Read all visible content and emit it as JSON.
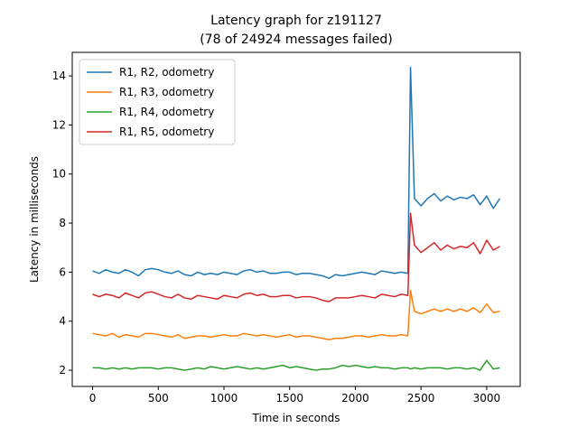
{
  "chart_data": {
    "type": "line",
    "title": "Latency graph for z191127",
    "subtitle": "(78 of 24924 messages failed)",
    "xlabel": "Time in seconds",
    "ylabel": "Latency in milliseconds",
    "xlim": [
      -155,
      3255
    ],
    "ylim": [
      1.34,
      14.96
    ],
    "xticks": [
      0,
      500,
      1000,
      1500,
      2000,
      2500,
      3000
    ],
    "yticks": [
      2,
      4,
      6,
      8,
      10,
      12,
      14
    ],
    "grid": false,
    "legend": "upper left",
    "x": [
      0,
      50,
      100,
      150,
      200,
      250,
      300,
      350,
      400,
      450,
      500,
      550,
      600,
      650,
      700,
      750,
      800,
      850,
      900,
      950,
      1000,
      1050,
      1100,
      1150,
      1200,
      1250,
      1300,
      1350,
      1400,
      1450,
      1500,
      1550,
      1600,
      1650,
      1700,
      1750,
      1800,
      1850,
      1900,
      1950,
      2000,
      2050,
      2100,
      2150,
      2200,
      2250,
      2300,
      2350,
      2400,
      2420,
      2450,
      2500,
      2550,
      2600,
      2650,
      2700,
      2750,
      2800,
      2850,
      2900,
      2950,
      3000,
      3050,
      3100
    ],
    "series": [
      {
        "name": "R1, R2, odometry",
        "color": "#1f77b4",
        "values": [
          6.05,
          5.95,
          6.1,
          6.0,
          5.95,
          6.1,
          6.0,
          5.85,
          6.1,
          6.15,
          6.1,
          6.0,
          5.95,
          6.05,
          5.9,
          5.85,
          6.0,
          5.9,
          5.95,
          5.9,
          6.0,
          5.95,
          5.9,
          6.05,
          6.1,
          6.0,
          6.05,
          5.95,
          5.95,
          6.0,
          6.0,
          5.9,
          5.95,
          5.95,
          5.9,
          5.85,
          5.75,
          5.9,
          5.85,
          5.9,
          5.95,
          6.0,
          5.95,
          5.9,
          6.05,
          6.0,
          5.95,
          6.0,
          5.95,
          14.35,
          9.0,
          8.7,
          9.0,
          9.2,
          8.9,
          9.1,
          8.95,
          9.05,
          9.0,
          9.15,
          8.75,
          9.1,
          8.6,
          9.0
        ]
      },
      {
        "name": "R1, R3, odometry",
        "color": "#ff7f0e",
        "values": [
          3.5,
          3.45,
          3.4,
          3.5,
          3.35,
          3.45,
          3.4,
          3.35,
          3.5,
          3.5,
          3.45,
          3.4,
          3.35,
          3.45,
          3.3,
          3.35,
          3.4,
          3.4,
          3.35,
          3.4,
          3.45,
          3.4,
          3.4,
          3.5,
          3.45,
          3.4,
          3.45,
          3.4,
          3.35,
          3.4,
          3.45,
          3.35,
          3.4,
          3.4,
          3.35,
          3.3,
          3.25,
          3.3,
          3.3,
          3.35,
          3.4,
          3.4,
          3.35,
          3.4,
          3.45,
          3.4,
          3.4,
          3.45,
          3.4,
          5.25,
          4.4,
          4.3,
          4.4,
          4.5,
          4.4,
          4.5,
          4.4,
          4.5,
          4.4,
          4.55,
          4.35,
          4.7,
          4.35,
          4.4
        ]
      },
      {
        "name": "R1, R4, odometry",
        "color": "#2ca02c",
        "values": [
          2.1,
          2.1,
          2.05,
          2.1,
          2.05,
          2.1,
          2.05,
          2.1,
          2.1,
          2.1,
          2.05,
          2.1,
          2.1,
          2.05,
          2.0,
          2.05,
          2.1,
          2.05,
          2.15,
          2.1,
          2.05,
          2.1,
          2.15,
          2.1,
          2.05,
          2.1,
          2.05,
          2.1,
          2.15,
          2.2,
          2.1,
          2.15,
          2.1,
          2.05,
          2.0,
          2.05,
          2.05,
          2.1,
          2.2,
          2.15,
          2.2,
          2.15,
          2.1,
          2.15,
          2.1,
          2.1,
          2.05,
          2.1,
          2.1,
          2.05,
          2.1,
          2.05,
          2.1,
          2.1,
          2.1,
          2.05,
          2.1,
          2.1,
          2.05,
          2.1,
          2.0,
          2.4,
          2.05,
          2.1
        ]
      },
      {
        "name": "R1, R5, odometry",
        "color": "#d62728",
        "values": [
          5.1,
          5.0,
          5.1,
          5.05,
          4.95,
          5.15,
          5.05,
          4.95,
          5.15,
          5.2,
          5.1,
          5.0,
          4.95,
          5.1,
          4.95,
          4.9,
          5.05,
          5.0,
          4.95,
          4.9,
          5.05,
          5.0,
          4.95,
          5.1,
          5.15,
          5.05,
          5.1,
          5.0,
          5.0,
          5.05,
          5.05,
          4.95,
          5.0,
          5.0,
          4.95,
          4.85,
          4.8,
          4.95,
          4.95,
          4.95,
          5.0,
          5.05,
          5.0,
          4.95,
          5.1,
          5.05,
          5.0,
          5.1,
          5.05,
          8.4,
          7.1,
          6.8,
          7.0,
          7.2,
          6.9,
          7.1,
          6.95,
          7.05,
          7.0,
          7.2,
          6.75,
          7.3,
          6.9,
          7.05
        ]
      }
    ]
  }
}
